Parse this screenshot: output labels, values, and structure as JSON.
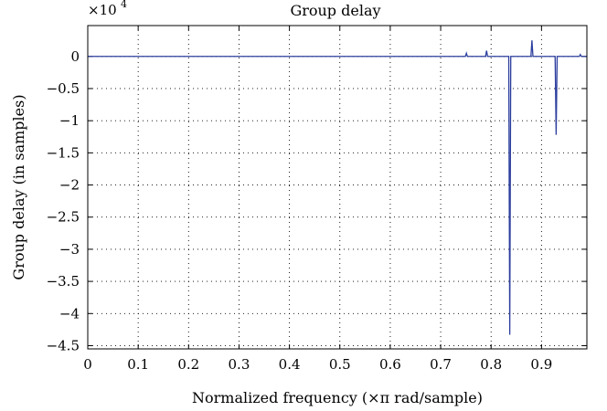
{
  "chart_data": {
    "type": "line",
    "title": "Group delay",
    "xlabel": "Normalized frequency (×π rad/sample)",
    "ylabel": "Group delay (in samples)",
    "y_multiplier": {
      "base": "×10",
      "exponent": "4"
    },
    "xlim": [
      0,
      0.99
    ],
    "ylim": [
      -4.55,
      0.48
    ],
    "x_ticks": [
      0,
      0.1,
      0.2,
      0.3,
      0.4,
      0.5,
      0.6,
      0.7,
      0.8,
      0.9
    ],
    "x_tick_labels": [
      "0",
      "0.1",
      "0.2",
      "0.3",
      "0.4",
      "0.5",
      "0.6",
      "0.7",
      "0.8",
      "0.9"
    ],
    "y_ticks": [
      0,
      -0.5,
      -1,
      -1.5,
      -2,
      -2.5,
      -3,
      -3.5,
      -4,
      -4.5
    ],
    "y_tick_labels": [
      "0",
      "−0.5",
      "−1",
      "−1.5",
      "−2",
      "−2.5",
      "−3",
      "−3.5",
      "−4",
      "−4.5"
    ],
    "grid": true,
    "line_color": "#2c3e9e",
    "series": [
      {
        "x": [
          0,
          0.749,
          0.751,
          0.753,
          0.789,
          0.791,
          0.793,
          0.835,
          0.837,
          0.839,
          0.879,
          0.881,
          0.883,
          0.927,
          0.929,
          0.931,
          0.975,
          0.977,
          0.979,
          0.99
        ],
        "y": [
          0,
          0,
          0.05,
          0,
          0,
          0.09,
          0,
          0,
          -4.33,
          0,
          0,
          0.25,
          0,
          0,
          -1.22,
          0,
          0,
          0.03,
          0,
          0
        ]
      }
    ]
  }
}
